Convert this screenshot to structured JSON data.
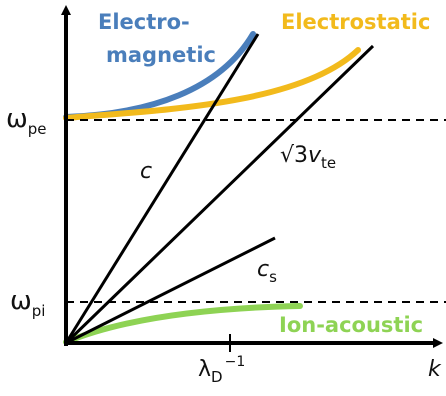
{
  "axes": {
    "x_label": "k",
    "tick_label": {
      "base": "λ",
      "subscript": "D",
      "superscript": "−1"
    }
  },
  "levels": {
    "omega_pe": {
      "symbol": "ω",
      "subscript": "pe"
    },
    "omega_pi": {
      "symbol": "ω",
      "subscript": "pi"
    }
  },
  "line_labels": {
    "c": "c",
    "thermal": {
      "prefix": "√3",
      "symbol": "v",
      "subscript": "te"
    },
    "sound": {
      "symbol": "c",
      "subscript": "s"
    }
  },
  "branch_labels": {
    "electromagnetic_line1": "Electro-",
    "electromagnetic_line2": "magnetic",
    "electrostatic": "Electrostatic",
    "ion_acoustic": "Ion-acoustic"
  },
  "colors": {
    "electromagnetic": "#4A7EBB",
    "electrostatic": "#F2BA1C",
    "ion_acoustic": "#8ED354",
    "axes": "#000000"
  }
}
